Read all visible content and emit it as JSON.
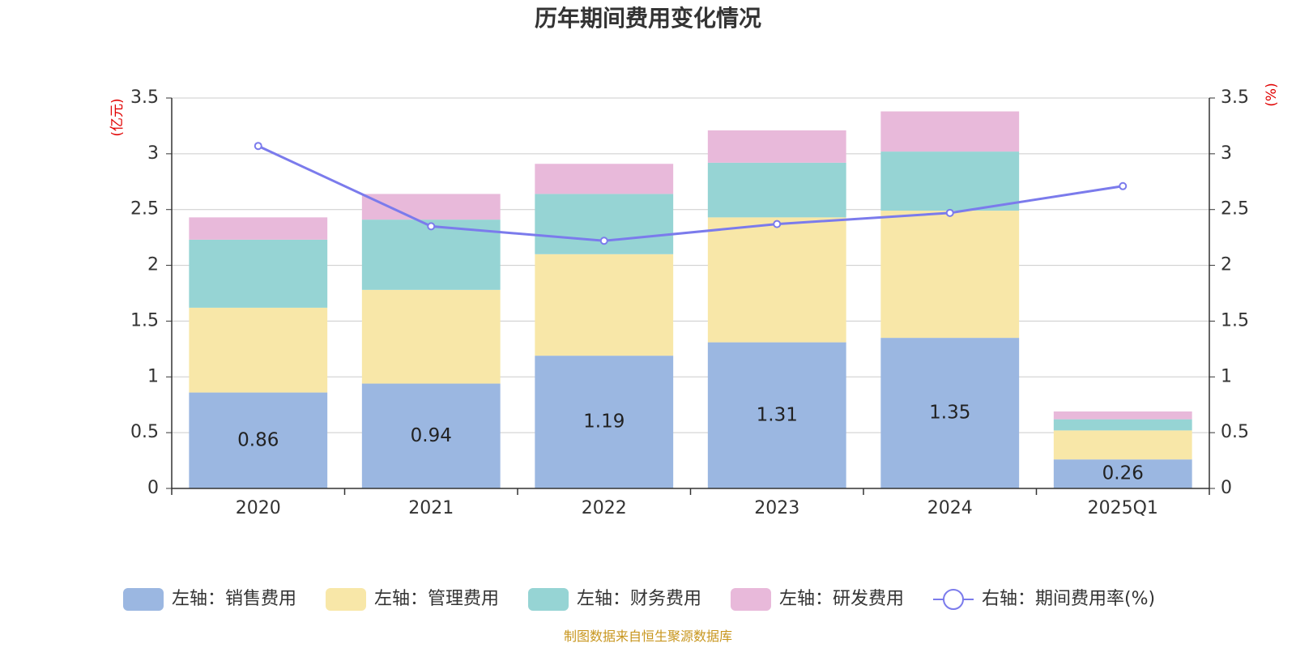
{
  "colors": {
    "sales": "#9bb7e1",
    "admin": "#f8e7a8",
    "finance": "#96d4d4",
    "rd": "#e8b9da",
    "rate": "#7b7bec",
    "unit": "#e00000",
    "source": "#c8961e"
  },
  "chart_data": {
    "type": "bar",
    "title": "历年期间费用变化情况",
    "left_unit": "(亿元)",
    "right_unit": "(%)",
    "categories": [
      "2020",
      "2021",
      "2022",
      "2023",
      "2024",
      "2025Q1"
    ],
    "y_left": {
      "min": 0,
      "max": 3.5,
      "ticks": [
        "0",
        "0.5",
        "1",
        "1.5",
        "2",
        "2.5",
        "3",
        "3.5"
      ]
    },
    "y_right": {
      "min": 0,
      "max": 3.5,
      "ticks": [
        "0",
        "0.5",
        "1",
        "1.5",
        "2",
        "2.5",
        "3",
        "3.5"
      ]
    },
    "grid": true,
    "legend_position": "bottom",
    "series": [
      {
        "name": "左轴：销售费用",
        "type": "bar",
        "axis": "left",
        "values": [
          0.86,
          0.94,
          1.19,
          1.31,
          1.35,
          0.26
        ],
        "labels": [
          "0.86",
          "0.94",
          "1.19",
          "1.31",
          "1.35",
          "0.26"
        ]
      },
      {
        "name": "左轴：管理费用",
        "type": "bar",
        "axis": "left",
        "values": [
          0.76,
          0.84,
          0.91,
          1.12,
          1.14,
          0.26
        ]
      },
      {
        "name": "左轴：财务费用",
        "type": "bar",
        "axis": "left",
        "values": [
          0.61,
          0.63,
          0.54,
          0.49,
          0.53,
          0.1
        ]
      },
      {
        "name": "左轴：研发费用",
        "type": "bar",
        "axis": "left",
        "values": [
          0.2,
          0.23,
          0.27,
          0.29,
          0.36,
          0.07
        ]
      },
      {
        "name": "右轴：期间费用率(%)",
        "type": "line",
        "axis": "right",
        "values": [
          3.07,
          2.35,
          2.22,
          2.37,
          2.47,
          2.71
        ]
      }
    ],
    "source": "制图数据来自恒生聚源数据库"
  }
}
